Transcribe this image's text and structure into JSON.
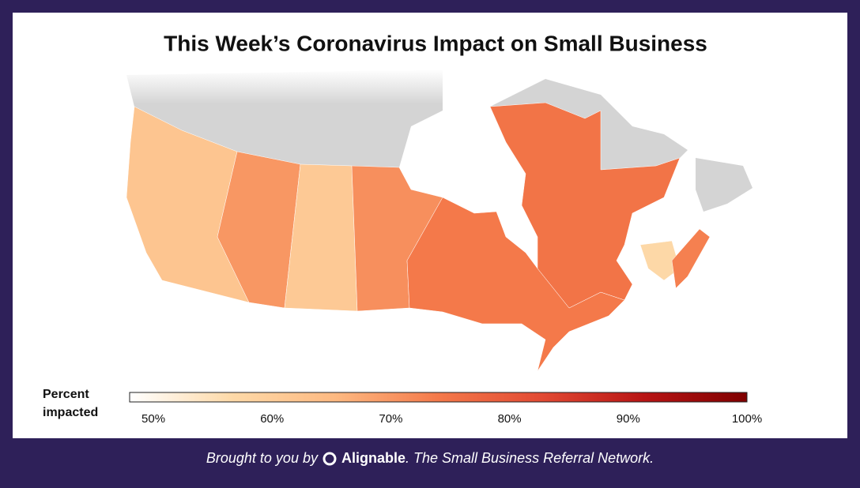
{
  "chart_data": {
    "type": "choropleth",
    "title": "This Week’s Coronavirus Impact on Small Business",
    "values": [
      62,
      70,
      61,
      71,
      74,
      75,
      57,
      73
    ],
    "no_data_color": "#d4d4d4",
    "legend_title": "Percent impacted",
    "clim": [
      48,
      100
    ],
    "colors": [
      "#ffffff",
      "#fdd9a8",
      "#fdb981",
      "#f4794a",
      "#e24a33",
      "#b81414",
      "#7f0000"
    ],
    "ticks": [
      {
        "value": 50,
        "label": "50%"
      },
      {
        "value": 60,
        "label": "60%"
      },
      {
        "value": 70,
        "label": "70%"
      },
      {
        "value": 80,
        "label": "80%"
      },
      {
        "value": 90,
        "label": "90%"
      },
      {
        "value": 100,
        "label": "100%"
      }
    ]
  },
  "footer": {
    "prefix": "Brought to you by",
    "brand": "Alignable",
    "suffix": ". The Small Business Referral Network."
  }
}
